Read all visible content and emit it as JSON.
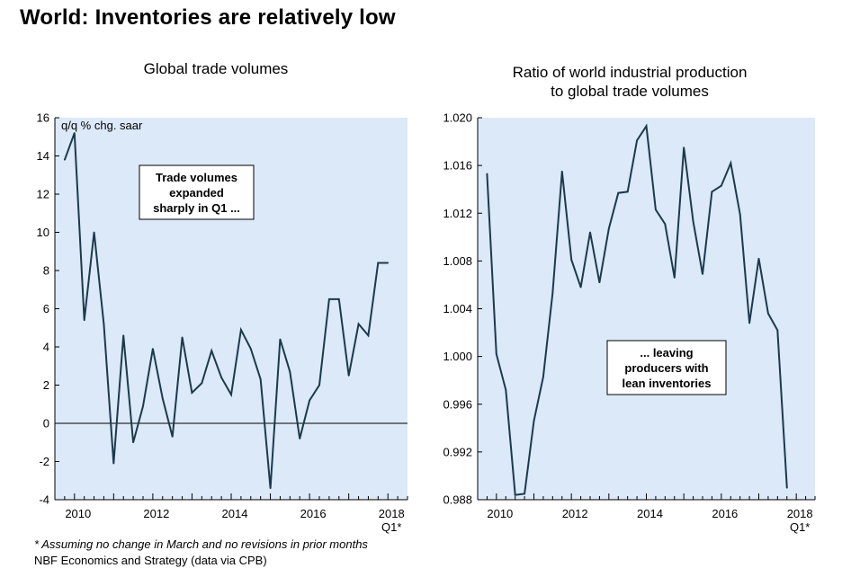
{
  "main_title": "World: Inventories are relatively low",
  "footnotes": {
    "assumption": "* Assuming no change in March and no revisions in prior months",
    "source": "NBF Economics and Strategy (data via CPB)"
  },
  "colors": {
    "plot_bg": "#dce9f9",
    "line": "#1b3a4b",
    "axis": "#000000"
  },
  "chart_data": [
    {
      "type": "line",
      "title": "Global trade volumes",
      "ylabel": "q/q % chg. saar",
      "ylim": [
        -4,
        16
      ],
      "yticks": [
        -4,
        -2,
        0,
        2,
        4,
        6,
        8,
        10,
        12,
        14,
        16
      ],
      "xlim": [
        2009.5,
        2018.5
      ],
      "xtick_labels": [
        {
          "x": 2010,
          "label": "2010"
        },
        {
          "x": 2012,
          "label": "2012"
        },
        {
          "x": 2014,
          "label": "2014"
        },
        {
          "x": 2016,
          "label": "2016"
        },
        {
          "x": 2018,
          "label": "2018"
        }
      ],
      "xtick_sublabel": "Q1*",
      "zero_line": true,
      "annotation": "Trade volumes expanded sharply in Q1 ...",
      "annotation_lines": [
        "Trade volumes",
        "expanded",
        "sharply in Q1 ..."
      ],
      "series": [
        {
          "name": "Global trade volumes",
          "x": [
            2009.75,
            2010.0,
            2010.25,
            2010.5,
            2010.75,
            2011.0,
            2011.25,
            2011.5,
            2011.75,
            2012.0,
            2012.25,
            2012.5,
            2012.75,
            2013.0,
            2013.25,
            2013.5,
            2013.75,
            2014.0,
            2014.25,
            2014.5,
            2014.75,
            2015.0,
            2015.25,
            2015.5,
            2015.75,
            2016.0,
            2016.25,
            2016.5,
            2016.75,
            2017.0,
            2017.25,
            2017.5,
            2017.75,
            2018.0
          ],
          "values": [
            13.8,
            15.2,
            5.4,
            10.0,
            5.2,
            -2.1,
            4.6,
            -1.0,
            0.9,
            3.9,
            1.3,
            -0.7,
            4.5,
            1.6,
            2.1,
            3.8,
            2.4,
            1.5,
            4.9,
            3.9,
            2.3,
            -3.4,
            4.4,
            2.7,
            -0.8,
            1.2,
            2.0,
            6.5,
            6.5,
            2.5,
            5.2,
            4.6,
            8.4,
            8.4
          ]
        }
      ]
    },
    {
      "type": "line",
      "title": "Ratio of world industrial production to global trade volumes",
      "title_lines": [
        "Ratio of world industrial production",
        "to global trade volumes"
      ],
      "ylim": [
        0.988,
        1.02
      ],
      "yticks": [
        0.988,
        0.992,
        0.996,
        1.0,
        1.004,
        1.008,
        1.012,
        1.016,
        1.02
      ],
      "ytick_labels": [
        "0.988",
        "0.992",
        "0.996",
        "1.000",
        "1.004",
        "1.008",
        "1.012",
        "1.016",
        "1.020"
      ],
      "xlim": [
        2009.5,
        2018.5
      ],
      "xtick_labels": [
        {
          "x": 2010,
          "label": "2010"
        },
        {
          "x": 2012,
          "label": "2012"
        },
        {
          "x": 2014,
          "label": "2014"
        },
        {
          "x": 2016,
          "label": "2016"
        },
        {
          "x": 2018,
          "label": "2018"
        }
      ],
      "xtick_sublabel": "Q1*",
      "annotation": "... leaving producers with lean inventories",
      "annotation_lines": [
        "... leaving",
        "producers with",
        "lean inventories"
      ],
      "series": [
        {
          "name": "IP / trade ratio",
          "x": [
            2009.75,
            2010.0,
            2010.25,
            2010.5,
            2010.75,
            2011.0,
            2011.25,
            2011.5,
            2011.75,
            2012.0,
            2012.25,
            2012.5,
            2012.75,
            2013.0,
            2013.25,
            2013.5,
            2013.75,
            2014.0,
            2014.25,
            2014.5,
            2014.75,
            2015.0,
            2015.25,
            2015.5,
            2015.75,
            2016.0,
            2016.25,
            2016.5,
            2016.75,
            2017.0,
            2017.25,
            2017.5,
            2017.75
          ],
          "values": [
            1.0153,
            1.0002,
            0.9972,
            0.9884,
            0.9885,
            0.9946,
            0.9983,
            1.0053,
            1.0155,
            1.0081,
            1.0058,
            1.0104,
            1.0062,
            1.0107,
            1.0137,
            1.0138,
            1.0181,
            1.0193,
            1.0123,
            1.0111,
            1.0066,
            1.0175,
            1.0113,
            1.0069,
            1.0138,
            1.0143,
            1.0162,
            1.0119,
            1.0028,
            1.0082,
            1.0036,
            1.0022,
            0.989
          ]
        }
      ]
    }
  ]
}
